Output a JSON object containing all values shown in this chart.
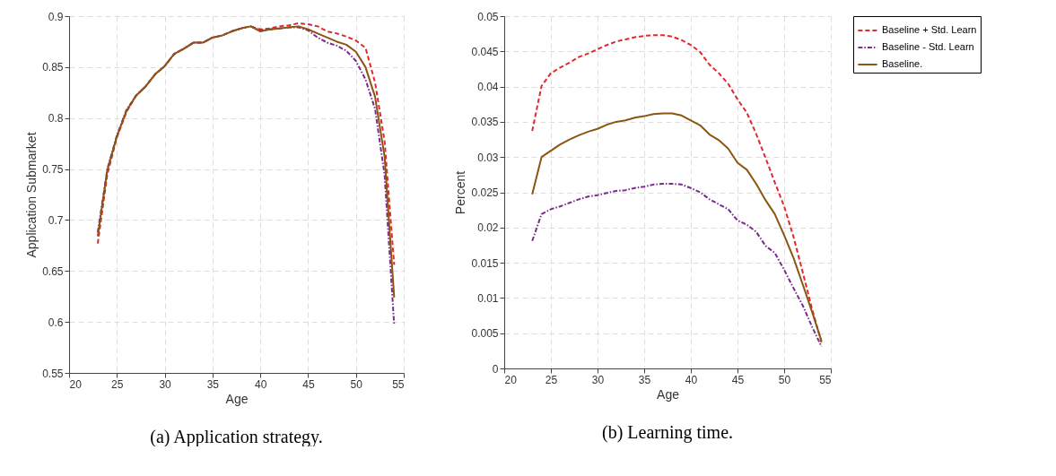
{
  "chart_data": [
    {
      "type": "line",
      "xlabel": "Age",
      "ylabel": "Application Submarket",
      "annotations": [
        "(a) Application strategy."
      ],
      "x": [
        23,
        24,
        25,
        26,
        27,
        28,
        29,
        30,
        31,
        32,
        33,
        34,
        35,
        36,
        37,
        38,
        39,
        40,
        41,
        42,
        43,
        44,
        45,
        46,
        47,
        48,
        49,
        50,
        51,
        52,
        53,
        54
      ],
      "series": [
        {
          "color": "#e0282e",
          "line_style": "dashed",
          "values": [
            0.677,
            0.745,
            0.781,
            0.806,
            0.822,
            0.831,
            0.843,
            0.851,
            0.863,
            0.868,
            0.874,
            0.874,
            0.879,
            0.881,
            0.885,
            0.888,
            0.89,
            0.887,
            0.888,
            0.89,
            0.891,
            0.893,
            0.892,
            0.89,
            0.885,
            0.883,
            0.88,
            0.876,
            0.869,
            0.835,
            0.777,
            0.656
          ]
        },
        {
          "color": "#7b2a8e",
          "line_style": "dotted",
          "values": [
            0.688,
            0.75,
            0.783,
            0.808,
            0.822,
            0.831,
            0.843,
            0.851,
            0.863,
            0.868,
            0.874,
            0.874,
            0.879,
            0.881,
            0.885,
            0.888,
            0.89,
            0.886,
            0.887,
            0.888,
            0.889,
            0.889,
            0.886,
            0.879,
            0.874,
            0.871,
            0.866,
            0.856,
            0.838,
            0.809,
            0.744,
            0.597
          ]
        },
        {
          "color": "#8b5513",
          "line_style": "solid",
          "values": [
            0.684,
            0.749,
            0.782,
            0.807,
            0.822,
            0.831,
            0.843,
            0.851,
            0.863,
            0.868,
            0.874,
            0.874,
            0.879,
            0.881,
            0.885,
            0.888,
            0.89,
            0.885,
            0.887,
            0.888,
            0.889,
            0.89,
            0.887,
            0.883,
            0.879,
            0.875,
            0.872,
            0.865,
            0.85,
            0.821,
            0.762,
            0.624
          ]
        }
      ],
      "xlim": [
        20,
        55
      ],
      "xticks": [
        20,
        25,
        30,
        35,
        40,
        45,
        50,
        55
      ],
      "ylim": [
        0.55,
        0.9
      ],
      "yticks": [
        0.55,
        0.6,
        0.65,
        0.7,
        0.75,
        0.8,
        0.85,
        0.9
      ],
      "grid": true,
      "legend": false
    },
    {
      "type": "line",
      "xlabel": "Age",
      "ylabel": "Percent",
      "annotations": [
        "(b) Learning time."
      ],
      "x": [
        23,
        24,
        25,
        26,
        27,
        28,
        29,
        30,
        31,
        32,
        33,
        34,
        35,
        36,
        37,
        38,
        39,
        40,
        41,
        42,
        43,
        44,
        45,
        46,
        47,
        48,
        49,
        50,
        51,
        52,
        53,
        54
      ],
      "series": [
        {
          "name": "Baseline + Std. Learn",
          "color": "#e0282e",
          "line_style": "dashed",
          "values": [
            0.0337,
            0.0401,
            0.0419,
            0.0427,
            0.0434,
            0.0442,
            0.0447,
            0.0453,
            0.0459,
            0.0464,
            0.0467,
            0.047,
            0.0472,
            0.0473,
            0.0473,
            0.0471,
            0.0466,
            0.0459,
            0.0449,
            0.0431,
            0.0419,
            0.0404,
            0.0382,
            0.0363,
            0.0333,
            0.0299,
            0.0264,
            0.023,
            0.0187,
            0.0136,
            0.0084,
            0.0037
          ]
        },
        {
          "name": "Baseline - Std. Learn",
          "color": "#7b2a8e",
          "line_style": "dotted",
          "values": [
            0.0181,
            0.0219,
            0.0226,
            0.023,
            0.0235,
            0.024,
            0.0244,
            0.0246,
            0.0249,
            0.0252,
            0.0253,
            0.0256,
            0.0258,
            0.0261,
            0.0262,
            0.0262,
            0.0261,
            0.0256,
            0.025,
            0.024,
            0.0233,
            0.0226,
            0.021,
            0.0204,
            0.0194,
            0.0174,
            0.0164,
            0.014,
            0.0114,
            0.0089,
            0.0059,
            0.0031
          ]
        },
        {
          "name": "Baseline.",
          "color": "#8b5513",
          "line_style": "solid",
          "values": [
            0.0247,
            0.03,
            0.0309,
            0.0318,
            0.0325,
            0.0331,
            0.0336,
            0.034,
            0.0346,
            0.035,
            0.0352,
            0.0356,
            0.0358,
            0.0361,
            0.0362,
            0.0362,
            0.0359,
            0.0352,
            0.0345,
            0.0332,
            0.0324,
            0.0312,
            0.0292,
            0.0282,
            0.0262,
            0.0239,
            0.0219,
            0.0189,
            0.0157,
            0.0119,
            0.008,
            0.0039
          ]
        }
      ],
      "xlim": [
        20,
        55
      ],
      "xticks": [
        20,
        25,
        30,
        35,
        40,
        45,
        50,
        55
      ],
      "ylim": [
        0,
        0.05
      ],
      "yticks": [
        0,
        0.005,
        0.01,
        0.015,
        0.02,
        0.025,
        0.03,
        0.035,
        0.04,
        0.045,
        0.05
      ],
      "grid": true,
      "legend": "top right"
    }
  ]
}
